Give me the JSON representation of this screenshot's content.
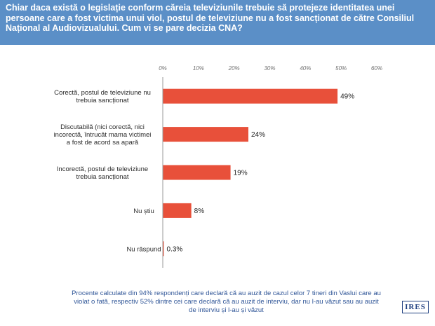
{
  "header": {
    "title": "Chiar daca există o legislație conform căreia televiziunile trebuie să protejeze identitatea unei persoane care a fost victima unui viol, postul de televiziune nu a fost sancționat de către Consiliul Național al Audiovizualului. Cum vi se pare decizia CNA?"
  },
  "colors": {
    "header_bg": "#5b8fc7",
    "bar": "#e8503a",
    "footer_text": "#2f5597"
  },
  "chart_data": {
    "type": "bar",
    "orientation": "horizontal",
    "categories": [
      [
        "Corectă, postul de televiziune nu",
        "trebuia sancționat"
      ],
      [
        "Discutabilă (nici corectă, nici",
        "incorectă, întrucât mama victimei",
        "a fost de acord sa apară"
      ],
      [
        "Incorectă, postul de televiziune",
        "trebuia sancționat"
      ],
      [
        "Nu știu"
      ],
      [
        "Nu răspund"
      ]
    ],
    "values": [
      49,
      24,
      19,
      8,
      0.3
    ],
    "value_labels": [
      "49%",
      "24%",
      "19%",
      "8%",
      "0.3%"
    ],
    "xlim": [
      0,
      60
    ],
    "ticks": [
      0,
      10,
      20,
      30,
      40,
      50,
      60
    ],
    "tick_labels": [
      "0%",
      "10%",
      "20%",
      "30%",
      "40%",
      "50%",
      "60%"
    ],
    "axis_position": "top",
    "grid": false,
    "legend": "none"
  },
  "footer": {
    "note": "Procente calculate din 94% respondenți care declară că au auzit de cazul celor 7 tineri din Vaslui care au violat o fată, respectiv 52% dintre cei care declară că au auzit de interviu, dar nu l-au văzut sau au auzit de interviu și l-au și văzut",
    "logo": "IRES"
  }
}
